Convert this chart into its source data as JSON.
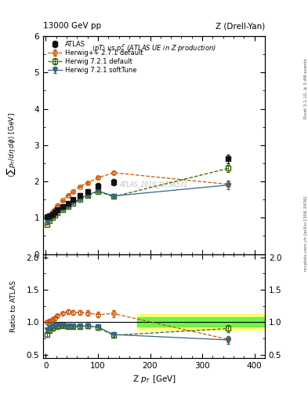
{
  "header_left": "13000 GeV pp",
  "header_right": "Z (Drell-Yan)",
  "title": "<pT> vs p_{T}^{Z} (ATLAS UE in Z production)",
  "ylabel_main": "<sum p_T/d\\u03b7 d\\u03d5> [GeV]",
  "ylabel_ratio": "Ratio to ATLAS",
  "xlabel": "Z p_{T} [GeV]",
  "watermark": "ATLAS_2019_I1736531",
  "right_label": "mcplots.cern.ch [arXiv:1306.3436]",
  "right_label2": "Rivet 3.1.10, ≥ 3.4M events",
  "atlas_x": [
    2.5,
    7.5,
    12.5,
    17.5,
    22.5,
    32.5,
    42.5,
    52.5,
    65,
    80,
    100,
    130,
    350
  ],
  "atlas_y": [
    1.02,
    1.06,
    1.1,
    1.15,
    1.22,
    1.3,
    1.4,
    1.5,
    1.62,
    1.72,
    1.88,
    1.98,
    2.62
  ],
  "atlas_ey": [
    0.03,
    0.03,
    0.03,
    0.03,
    0.03,
    0.03,
    0.04,
    0.04,
    0.05,
    0.06,
    0.07,
    0.08,
    0.12
  ],
  "hppdef_x": [
    2.5,
    7.5,
    12.5,
    17.5,
    22.5,
    32.5,
    42.5,
    52.5,
    65,
    80,
    100,
    130,
    350
  ],
  "hppdef_y": [
    1.02,
    1.08,
    1.15,
    1.22,
    1.34,
    1.48,
    1.62,
    1.72,
    1.86,
    1.96,
    2.1,
    2.24,
    1.92
  ],
  "hppdef_ey": [
    0.01,
    0.01,
    0.01,
    0.01,
    0.01,
    0.01,
    0.01,
    0.02,
    0.02,
    0.02,
    0.03,
    0.04,
    0.08
  ],
  "h721def_x": [
    2.5,
    7.5,
    12.5,
    17.5,
    22.5,
    32.5,
    42.5,
    52.5,
    65,
    80,
    100,
    130,
    350
  ],
  "h721def_y": [
    0.82,
    0.92,
    1.0,
    1.08,
    1.14,
    1.22,
    1.3,
    1.4,
    1.5,
    1.62,
    1.72,
    1.58,
    2.36
  ],
  "h721def_ey": [
    0.01,
    0.01,
    0.01,
    0.01,
    0.01,
    0.01,
    0.01,
    0.01,
    0.02,
    0.02,
    0.03,
    0.04,
    0.1
  ],
  "h721soft_x": [
    2.5,
    7.5,
    12.5,
    17.5,
    22.5,
    32.5,
    42.5,
    52.5,
    65,
    80,
    100,
    130,
    350
  ],
  "h721soft_y": [
    0.9,
    0.97,
    1.04,
    1.1,
    1.16,
    1.24,
    1.32,
    1.42,
    1.52,
    1.62,
    1.74,
    1.6,
    1.9
  ],
  "h721soft_ey": [
    0.01,
    0.01,
    0.01,
    0.01,
    0.01,
    0.01,
    0.01,
    0.01,
    0.02,
    0.02,
    0.03,
    0.04,
    0.12
  ],
  "atlas_color": "#111111",
  "hppdef_color": "#cc5500",
  "h721def_color": "#336600",
  "h721soft_color": "#336688",
  "ylim_main": [
    0.0,
    6.0
  ],
  "ylim_ratio": [
    0.45,
    2.05
  ],
  "xlim": [
    -5,
    420
  ],
  "band_yellow_ymin": 0.88,
  "band_yellow_ymax": 1.12,
  "band_green_ymin": 0.93,
  "band_green_ymax": 1.07,
  "band_xstart": 175,
  "band_xend": 420,
  "xticks": [
    0,
    100,
    200,
    300,
    400
  ],
  "yticks_main": [
    0,
    1,
    2,
    3,
    4,
    5,
    6
  ],
  "yticks_ratio": [
    0.5,
    1.0,
    1.5,
    2.0
  ]
}
